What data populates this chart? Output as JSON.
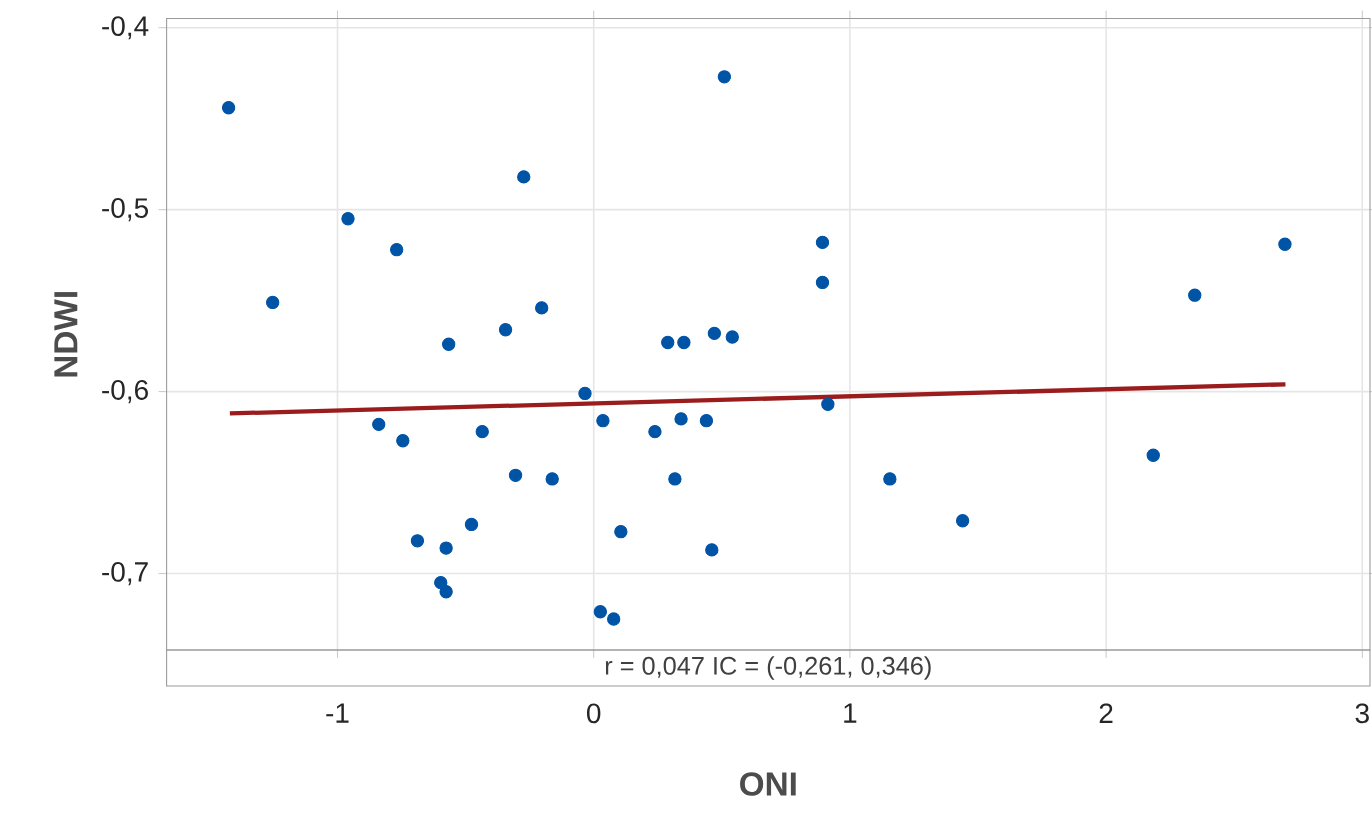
{
  "chart_data": {
    "type": "scatter",
    "xlabel": "ONI",
    "ylabel": "NDWI",
    "xlim": [
      -1.667,
      3.03
    ],
    "ylim": [
      -0.742,
      -0.395
    ],
    "xticks": [
      {
        "value": -1,
        "label": "-1"
      },
      0,
      1,
      2,
      3
    ],
    "yticks": [
      {
        "value": -0.7,
        "label": "-0,7"
      },
      {
        "value": -0.6,
        "label": "-0,6"
      },
      {
        "value": -0.5,
        "label": "-0,5"
      },
      {
        "value": -0.4,
        "label": "-0,4"
      }
    ],
    "grid": true,
    "annotations": [
      "r = 0,047  IC = (-0,261, 0,346)"
    ],
    "series": [
      {
        "color": "#0054a6",
        "marker": "circle",
        "x": [
          -1.425,
          -1.253,
          -0.959,
          -0.769,
          -0.273,
          0.51,
          -0.566,
          -0.344,
          -0.203,
          0.289,
          0.352,
          0.471,
          0.541,
          -0.034,
          0.893,
          0.893,
          2.346,
          2.698,
          -0.839,
          -0.745,
          -0.435,
          -0.305,
          -0.162,
          -0.688,
          -0.576,
          -0.477,
          -0.597,
          -0.576,
          0.036,
          0.239,
          0.341,
          0.44,
          0.317,
          0.106,
          0.461,
          0.026,
          0.078,
          0.914,
          1.156,
          1.44,
          2.184
        ],
        "values": [
          -0.444,
          -0.551,
          -0.505,
          -0.522,
          -0.482,
          -0.427,
          -0.574,
          -0.566,
          -0.554,
          -0.573,
          -0.573,
          -0.568,
          -0.57,
          -0.601,
          -0.518,
          -0.54,
          -0.547,
          -0.519,
          -0.618,
          -0.627,
          -0.622,
          -0.646,
          -0.648,
          -0.682,
          -0.686,
          -0.673,
          -0.705,
          -0.71,
          -0.616,
          -0.622,
          -0.615,
          -0.616,
          -0.648,
          -0.677,
          -0.687,
          -0.721,
          -0.725,
          -0.607,
          -0.648,
          -0.671,
          -0.635
        ]
      },
      {
        "type": "line",
        "color": "#9b1c1c",
        "marker": "none",
        "x": [
          -1.42,
          2.7
        ],
        "values": [
          -0.612,
          -0.596
        ]
      }
    ]
  }
}
